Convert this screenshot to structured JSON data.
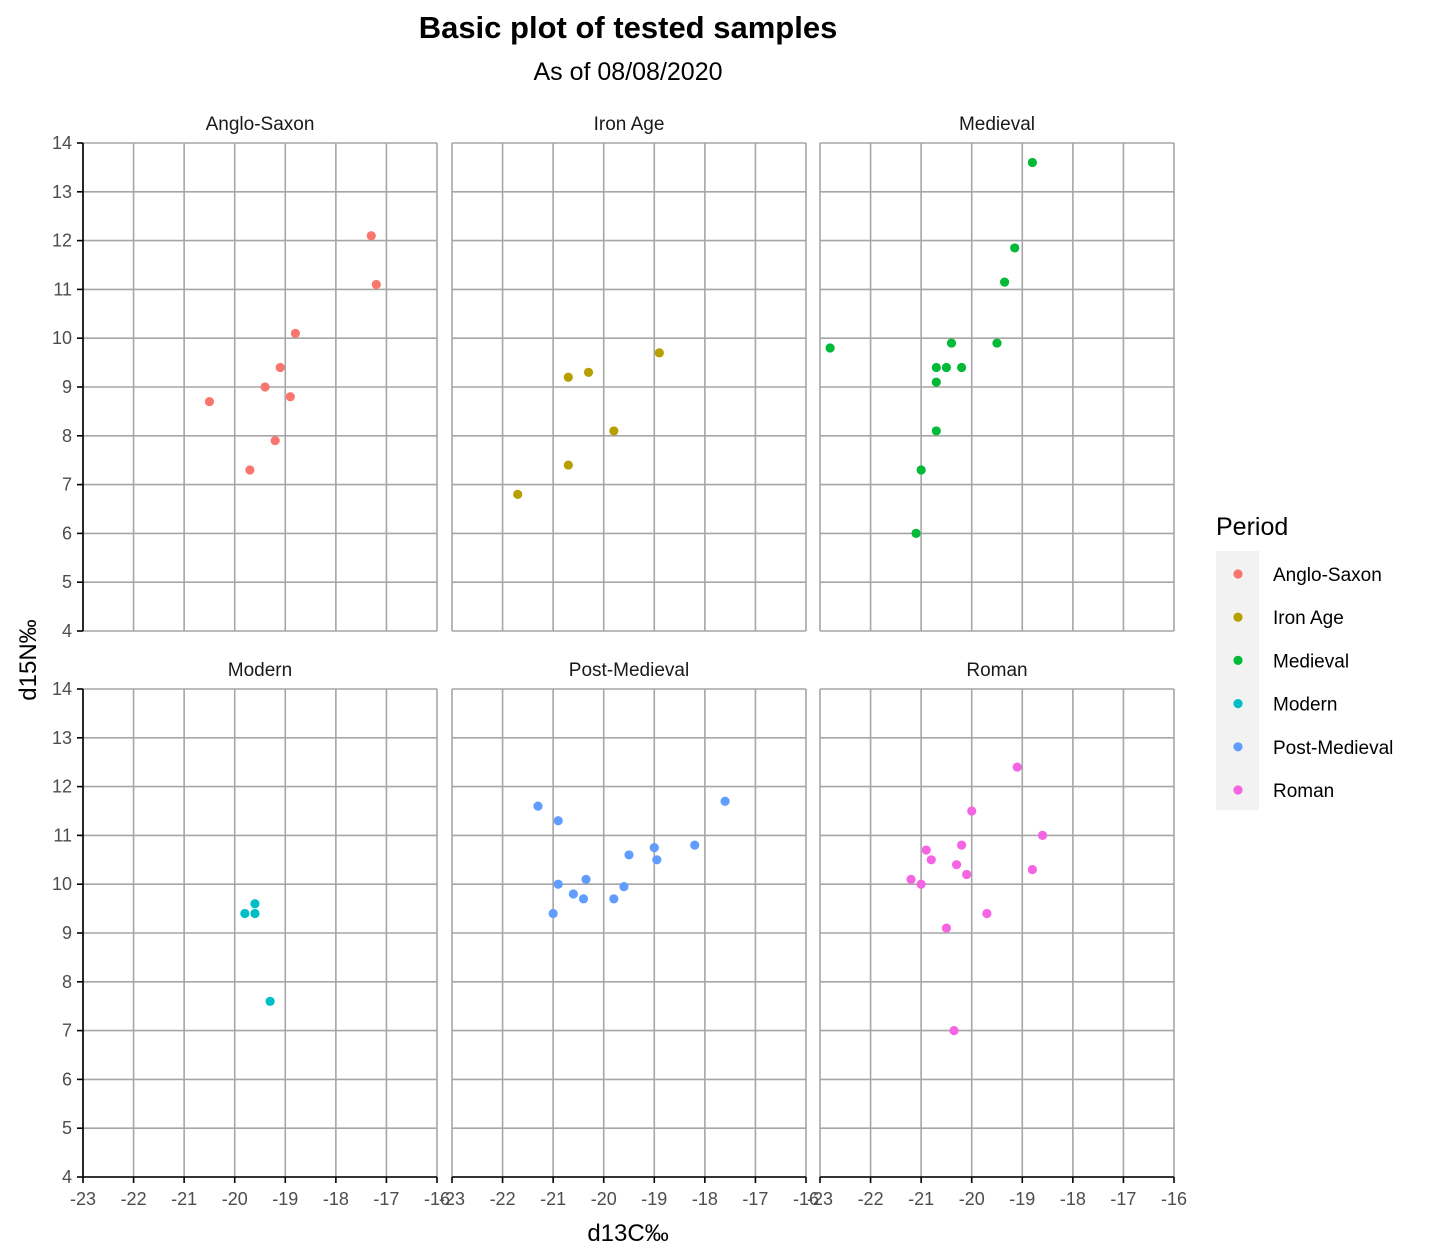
{
  "chart_data": {
    "type": "scatter",
    "title": "Basic plot of tested samples",
    "subtitle": "As of 08/08/2020",
    "xlabel": "d13C‰",
    "ylabel": "d15N‰",
    "xlim": [
      -23,
      -16
    ],
    "ylim": [
      4,
      14
    ],
    "x_ticks": [
      "-23",
      "-22",
      "-21",
      "-20",
      "-19",
      "-18",
      "-17",
      "-16"
    ],
    "y_ticks": [
      "4",
      "5",
      "6",
      "7",
      "8",
      "9",
      "10",
      "11",
      "12",
      "13",
      "14"
    ],
    "grid": true,
    "legend_title": "Period",
    "legend_position": "right",
    "facets": [
      {
        "name": "Anglo-Saxon",
        "color": "#F8766D",
        "points": [
          {
            "x": -20.5,
            "y": 8.7
          },
          {
            "x": -19.7,
            "y": 7.3
          },
          {
            "x": -19.4,
            "y": 9.0
          },
          {
            "x": -19.2,
            "y": 7.9
          },
          {
            "x": -19.1,
            "y": 9.4
          },
          {
            "x": -18.9,
            "y": 8.8
          },
          {
            "x": -18.8,
            "y": 10.1
          },
          {
            "x": -17.3,
            "y": 12.1
          },
          {
            "x": -17.2,
            "y": 11.1
          }
        ]
      },
      {
        "name": "Iron Age",
        "color": "#B79F00",
        "points": [
          {
            "x": -21.7,
            "y": 6.8
          },
          {
            "x": -20.7,
            "y": 9.2
          },
          {
            "x": -20.7,
            "y": 7.4
          },
          {
            "x": -20.3,
            "y": 9.3
          },
          {
            "x": -19.8,
            "y": 8.1
          },
          {
            "x": -18.9,
            "y": 9.7
          }
        ]
      },
      {
        "name": "Medieval",
        "color": "#00BA38",
        "points": [
          {
            "x": -22.8,
            "y": 9.8
          },
          {
            "x": -21.1,
            "y": 6.0
          },
          {
            "x": -21.0,
            "y": 7.3
          },
          {
            "x": -20.7,
            "y": 9.4
          },
          {
            "x": -20.7,
            "y": 9.1
          },
          {
            "x": -20.7,
            "y": 8.1
          },
          {
            "x": -20.5,
            "y": 9.4
          },
          {
            "x": -20.4,
            "y": 9.9
          },
          {
            "x": -20.2,
            "y": 9.4
          },
          {
            "x": -19.5,
            "y": 9.9
          },
          {
            "x": -19.35,
            "y": 11.15
          },
          {
            "x": -19.15,
            "y": 11.85
          },
          {
            "x": -18.8,
            "y": 13.6
          }
        ]
      },
      {
        "name": "Modern",
        "color": "#00BFC4",
        "points": [
          {
            "x": -19.8,
            "y": 9.4
          },
          {
            "x": -19.6,
            "y": 9.6
          },
          {
            "x": -19.6,
            "y": 9.4
          },
          {
            "x": -19.3,
            "y": 7.6
          }
        ]
      },
      {
        "name": "Post-Medieval",
        "color": "#619CFF",
        "points": [
          {
            "x": -21.3,
            "y": 11.6
          },
          {
            "x": -21.0,
            "y": 9.4
          },
          {
            "x": -20.9,
            "y": 11.3
          },
          {
            "x": -20.9,
            "y": 10.0
          },
          {
            "x": -20.6,
            "y": 9.8
          },
          {
            "x": -20.35,
            "y": 10.1
          },
          {
            "x": -20.4,
            "y": 9.7
          },
          {
            "x": -19.8,
            "y": 9.7
          },
          {
            "x": -19.6,
            "y": 9.95
          },
          {
            "x": -19.5,
            "y": 10.6
          },
          {
            "x": -19.0,
            "y": 10.75
          },
          {
            "x": -18.95,
            "y": 10.5
          },
          {
            "x": -18.2,
            "y": 10.8
          },
          {
            "x": -17.6,
            "y": 11.7
          }
        ]
      },
      {
        "name": "Roman",
        "color": "#F564E3",
        "points": [
          {
            "x": -21.2,
            "y": 10.1
          },
          {
            "x": -21.0,
            "y": 10.0
          },
          {
            "x": -20.9,
            "y": 10.7
          },
          {
            "x": -20.8,
            "y": 10.5
          },
          {
            "x": -20.5,
            "y": 9.1
          },
          {
            "x": -20.35,
            "y": 7.0
          },
          {
            "x": -20.3,
            "y": 10.4
          },
          {
            "x": -20.2,
            "y": 10.8
          },
          {
            "x": -20.1,
            "y": 10.2
          },
          {
            "x": -20.0,
            "y": 11.5
          },
          {
            "x": -19.7,
            "y": 9.4
          },
          {
            "x": -19.1,
            "y": 12.4
          },
          {
            "x": -18.8,
            "y": 10.3
          },
          {
            "x": -18.6,
            "y": 11.0
          }
        ]
      }
    ]
  }
}
